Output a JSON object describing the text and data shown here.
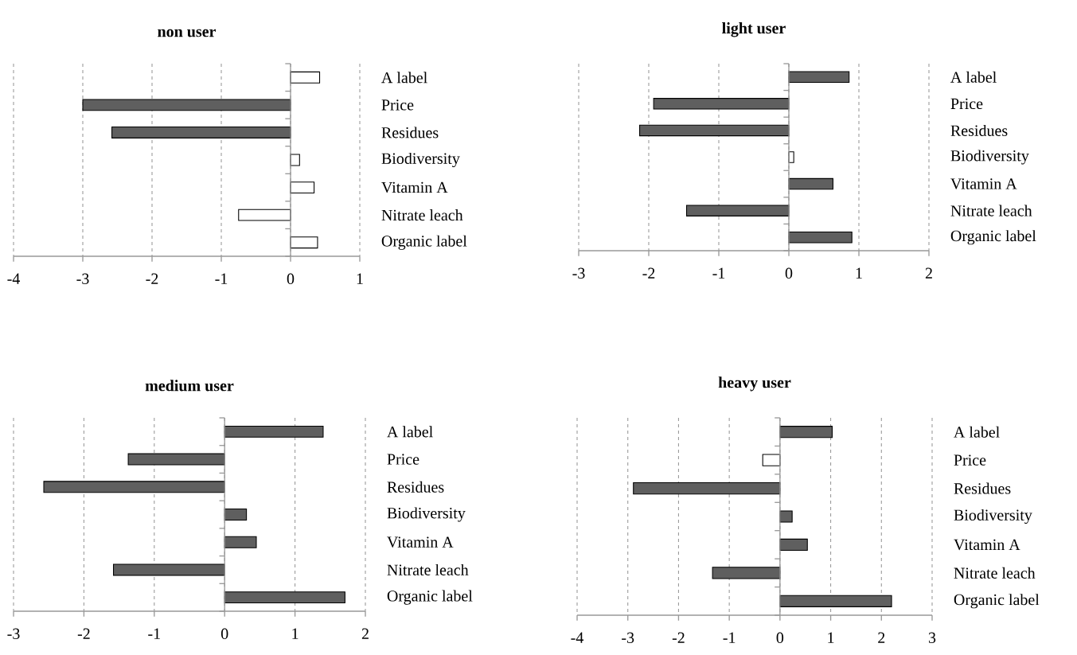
{
  "chart_data": [
    {
      "type": "bar",
      "orientation": "horizontal",
      "title": "non user",
      "categories": [
        "A label",
        "Price",
        "Residues",
        "Biodiversity",
        "Vitamin A",
        "Nitrate leach",
        "Organic label"
      ],
      "values": [
        0.42,
        -3.0,
        -2.58,
        0.13,
        0.34,
        -0.75,
        0.39
      ],
      "colors": [
        "#ffffff",
        "#5f5f5f",
        "#5f5f5f",
        "#ffffff",
        "#ffffff",
        "#ffffff",
        "#ffffff"
      ],
      "xlim": [
        -4,
        1
      ],
      "xticks": [
        -4,
        -3,
        -2,
        -1,
        0,
        1
      ],
      "grid": "x"
    },
    {
      "type": "bar",
      "orientation": "horizontal",
      "title": "light user",
      "categories": [
        "A label",
        "Price",
        "Residues",
        "Biodiversity",
        "Vitamin A",
        "Nitrate leach",
        "Organic label"
      ],
      "values": [
        0.86,
        -1.93,
        -2.13,
        0.07,
        0.63,
        -1.46,
        0.9
      ],
      "colors": [
        "#5f5f5f",
        "#5f5f5f",
        "#5f5f5f",
        "#ffffff",
        "#5f5f5f",
        "#5f5f5f",
        "#5f5f5f"
      ],
      "xlim": [
        -3,
        2
      ],
      "xticks": [
        -3,
        -2,
        -1,
        0,
        1,
        2
      ],
      "grid": "x"
    },
    {
      "type": "bar",
      "orientation": "horizontal",
      "title": "medium user",
      "categories": [
        "A label",
        "Price",
        "Residues",
        "Biodiversity",
        "Vitamin A",
        "Nitrate leach",
        "Organic label"
      ],
      "values": [
        1.4,
        -1.37,
        -2.57,
        0.31,
        0.45,
        -1.58,
        1.71
      ],
      "colors": [
        "#5f5f5f",
        "#5f5f5f",
        "#5f5f5f",
        "#5f5f5f",
        "#5f5f5f",
        "#5f5f5f",
        "#5f5f5f"
      ],
      "xlim": [
        -3,
        2
      ],
      "xticks": [
        -3,
        -2,
        -1,
        0,
        1,
        2
      ],
      "grid": "x"
    },
    {
      "type": "bar",
      "orientation": "horizontal",
      "title": "heavy user",
      "categories": [
        "A label",
        "Price",
        "Residues",
        "Biodiversity",
        "Vitamin A",
        "Nitrate leach",
        "Organic label"
      ],
      "values": [
        1.03,
        -0.34,
        -2.89,
        0.24,
        0.54,
        -1.33,
        2.2
      ],
      "colors": [
        "#5f5f5f",
        "#ffffff",
        "#5f5f5f",
        "#5f5f5f",
        "#5f5f5f",
        "#5f5f5f",
        "#5f5f5f"
      ],
      "xlim": [
        -4,
        3
      ],
      "xticks": [
        -4,
        -3,
        -2,
        -1,
        0,
        1,
        2,
        3
      ],
      "grid": "x"
    }
  ]
}
